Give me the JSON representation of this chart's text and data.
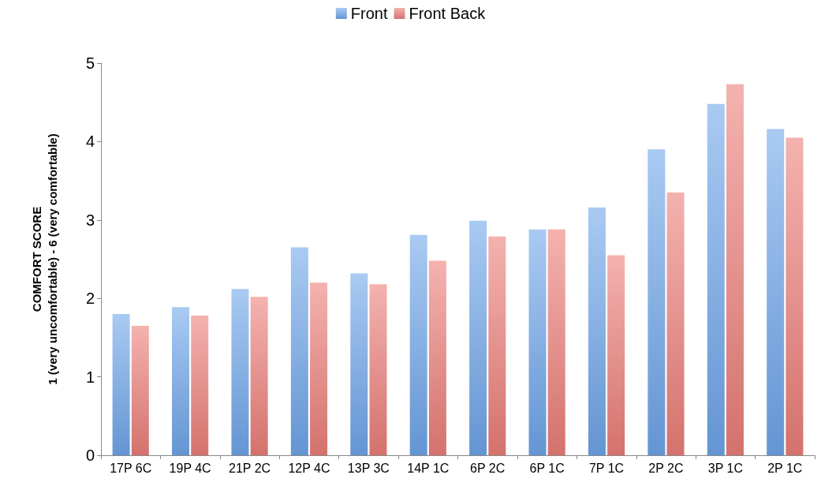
{
  "chart_data": {
    "type": "bar",
    "ylabel": "COMFORT SCORE\n1 (very uncomfortable) - 6 (very comfortable)",
    "categories": [
      "17P 6C",
      "19P 4C",
      "21P 2C",
      "12P 4C",
      "13P 3C",
      "14P 1C",
      "6P 2C",
      "6P 1C",
      "7P 1C",
      "2P 2C",
      "3P 1C",
      "2P 1C"
    ],
    "series": [
      {
        "name": "Front",
        "color": "#6fa6ea",
        "values": [
          1.8,
          1.89,
          2.12,
          2.65,
          2.32,
          2.81,
          2.99,
          2.88,
          3.16,
          3.9,
          4.48,
          4.16
        ]
      },
      {
        "name": "Front Back",
        "color": "#ec7f79",
        "values": [
          1.65,
          1.78,
          2.02,
          2.2,
          2.18,
          2.48,
          2.79,
          2.88,
          2.55,
          3.35,
          4.73,
          4.05
        ]
      }
    ],
    "ylim": [
      0,
      5
    ],
    "yticks": [
      0,
      1,
      2,
      3,
      4,
      5
    ],
    "grid": false,
    "legend": "top"
  }
}
